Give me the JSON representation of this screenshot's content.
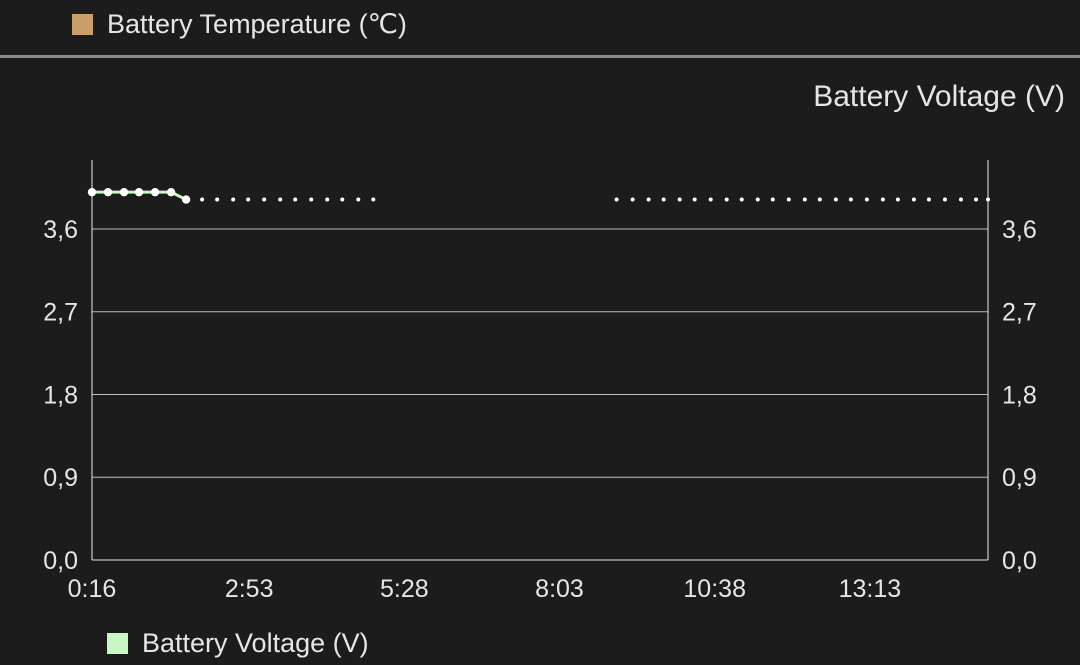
{
  "top_legend": {
    "label": "Battery Temperature (℃)",
    "color": "#c9a06a"
  },
  "chart_title": "Battery Voltage (V)",
  "bottom_legend": {
    "label": "Battery Voltage (V)",
    "color": "#c8f7c5"
  },
  "chart_data": {
    "type": "line",
    "title": "Battery Voltage (V)",
    "xlabel": "",
    "ylabel": "",
    "x_tick_labels": [
      "0:16",
      "2:53",
      "5:28",
      "8:03",
      "10:38",
      "13:13"
    ],
    "x_tick_minutes": [
      16,
      173,
      328,
      483,
      638,
      793
    ],
    "xlim_minutes": [
      16,
      911
    ],
    "y_tick_labels": [
      "0,0",
      "0,9",
      "1,8",
      "2,7",
      "3,6"
    ],
    "y_ticks": [
      0,
      0.9,
      1.8,
      2.7,
      3.6
    ],
    "ylim": [
      0,
      4.35
    ],
    "grid": true,
    "legend_position": "bottom-left",
    "line_color": "#c8f7c5",
    "series": [
      {
        "name": "Battery Voltage (V)",
        "segments": [
          {
            "x_minutes": [
              16,
              32,
              48,
              63,
              79,
              95,
              110
            ],
            "values": [
              4.0,
              4.0,
              4.0,
              4.0,
              4.0,
              4.0,
              3.92
            ]
          }
        ],
        "dots": [
          {
            "x_minutes": 126,
            "value": 3.92
          },
          {
            "x_minutes": 141,
            "value": 3.92
          },
          {
            "x_minutes": 157,
            "value": 3.92
          },
          {
            "x_minutes": 172,
            "value": 3.92
          },
          {
            "x_minutes": 188,
            "value": 3.92
          },
          {
            "x_minutes": 204,
            "value": 3.92
          },
          {
            "x_minutes": 219,
            "value": 3.92
          },
          {
            "x_minutes": 235,
            "value": 3.92
          },
          {
            "x_minutes": 251,
            "value": 3.92
          },
          {
            "x_minutes": 266,
            "value": 3.92
          },
          {
            "x_minutes": 282,
            "value": 3.92
          },
          {
            "x_minutes": 297,
            "value": 3.92
          },
          {
            "x_minutes": 540,
            "value": 3.92
          },
          {
            "x_minutes": 556,
            "value": 3.92
          },
          {
            "x_minutes": 572,
            "value": 3.92
          },
          {
            "x_minutes": 587,
            "value": 3.92
          },
          {
            "x_minutes": 603,
            "value": 3.92
          },
          {
            "x_minutes": 618,
            "value": 3.92
          },
          {
            "x_minutes": 634,
            "value": 3.92
          },
          {
            "x_minutes": 650,
            "value": 3.92
          },
          {
            "x_minutes": 665,
            "value": 3.92
          },
          {
            "x_minutes": 681,
            "value": 3.92
          },
          {
            "x_minutes": 696,
            "value": 3.92
          },
          {
            "x_minutes": 712,
            "value": 3.92
          },
          {
            "x_minutes": 728,
            "value": 3.92
          },
          {
            "x_minutes": 743,
            "value": 3.92
          },
          {
            "x_minutes": 759,
            "value": 3.92
          },
          {
            "x_minutes": 774,
            "value": 3.92
          },
          {
            "x_minutes": 790,
            "value": 3.92
          },
          {
            "x_minutes": 806,
            "value": 3.92
          },
          {
            "x_minutes": 821,
            "value": 3.92
          },
          {
            "x_minutes": 837,
            "value": 3.92
          },
          {
            "x_minutes": 852,
            "value": 3.92
          },
          {
            "x_minutes": 868,
            "value": 3.92
          },
          {
            "x_minutes": 884,
            "value": 3.92
          },
          {
            "x_minutes": 899,
            "value": 3.92
          },
          {
            "x_minutes": 911,
            "value": 3.92
          }
        ]
      }
    ]
  }
}
